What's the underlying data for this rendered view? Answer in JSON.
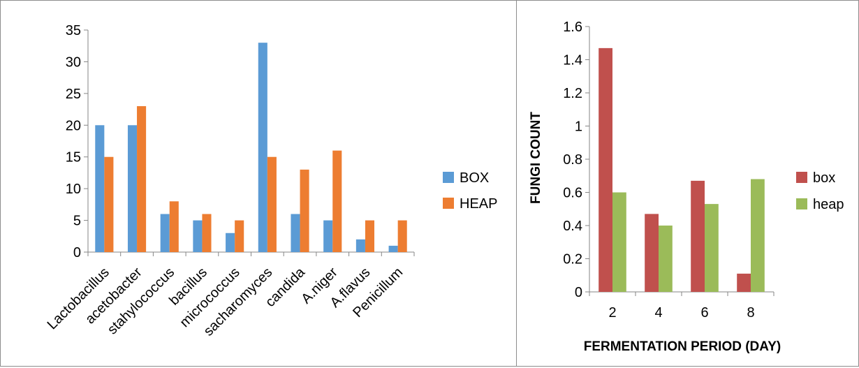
{
  "chart_data": [
    {
      "type": "bar",
      "categories": [
        "Lactobacillus",
        "acetobacter",
        "stahylococcus",
        "bacillus",
        "micrococcus",
        "sacharomyces",
        "candida",
        "A.niger",
        "A.flavus",
        "Penicillum"
      ],
      "series": [
        {
          "name": "BOX",
          "color": "#5B9BD5",
          "values": [
            20,
            20,
            6,
            5,
            3,
            33,
            6,
            5,
            2,
            1
          ]
        },
        {
          "name": "HEAP",
          "color": "#ED7D31",
          "values": [
            15,
            23,
            8,
            6,
            5,
            15,
            13,
            16,
            5,
            5
          ]
        }
      ],
      "ylim": [
        0,
        35
      ],
      "yticks": [
        "0",
        "5",
        "10",
        "15",
        "20",
        "25",
        "30",
        "35"
      ],
      "ytick_values": [
        0,
        5,
        10,
        15,
        20,
        25,
        30,
        35
      ],
      "legend": "right",
      "grid": false
    },
    {
      "type": "bar",
      "categories": [
        "2",
        "4",
        "6",
        "8"
      ],
      "series": [
        {
          "name": "box",
          "color": "#C0504D",
          "values": [
            1.47,
            0.47,
            0.67,
            0.11
          ]
        },
        {
          "name": "heap",
          "color": "#9BBB59",
          "values": [
            0.6,
            0.4,
            0.53,
            0.68
          ]
        }
      ],
      "xlabel": "FERMENTATION PERIOD (DAY)",
      "ylabel": "FUNGI COUNT",
      "ylim": [
        0,
        1.6
      ],
      "yticks": [
        "0",
        "0.2",
        "0.4",
        "0.6",
        "0.8",
        "1",
        "1.2",
        "1.4",
        "1.6"
      ],
      "ytick_values": [
        0,
        0.2,
        0.4,
        0.6,
        0.8,
        1,
        1.2,
        1.4,
        1.6
      ],
      "legend": "right",
      "grid": false
    }
  ]
}
